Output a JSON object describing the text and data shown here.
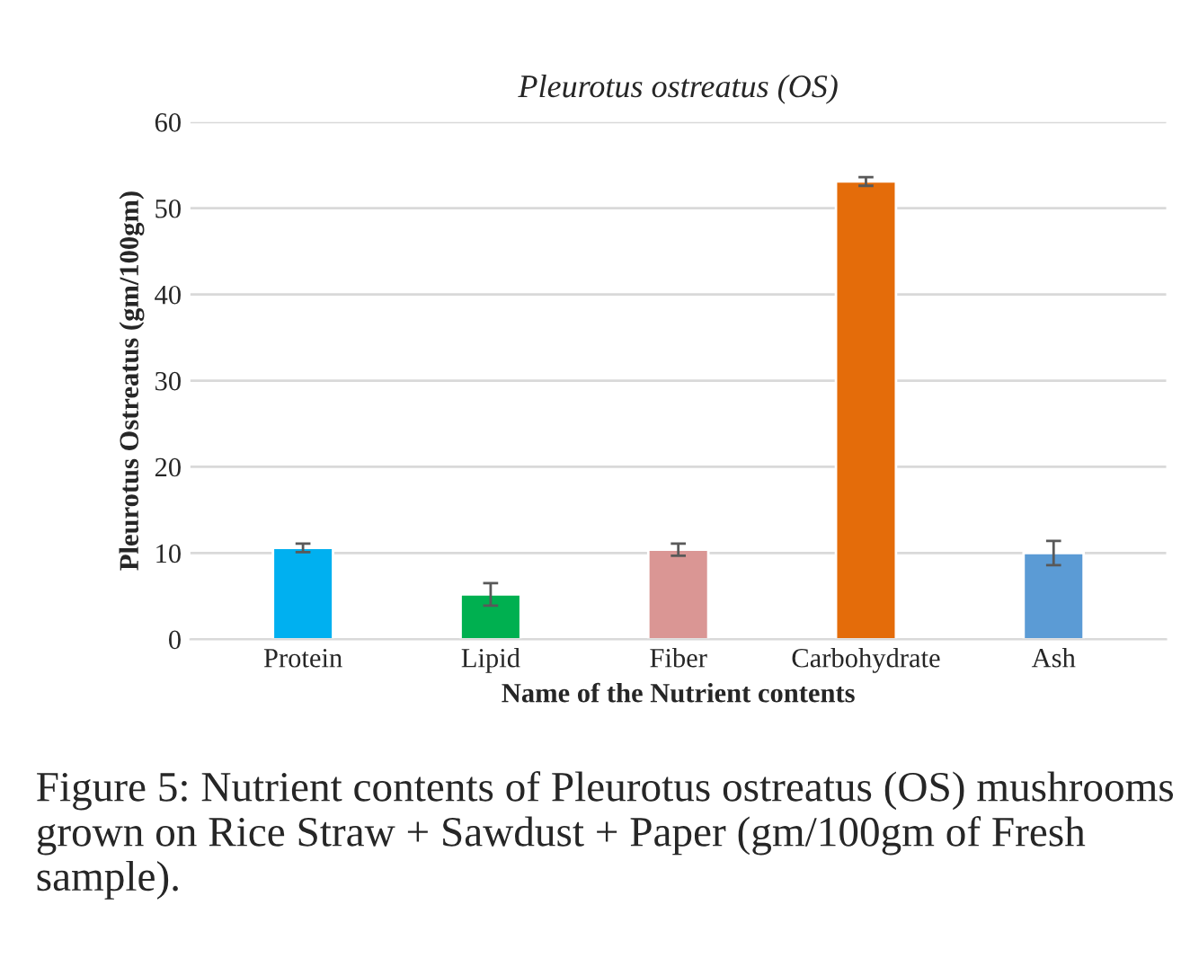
{
  "chart_data": {
    "type": "bar",
    "title": "Pleurotus ostreatus (OS)",
    "xlabel": "Name of the Nutrient contents",
    "ylabel": "Pleurotus Ostreatus (gm/100gm)",
    "categories": [
      "Protein",
      "Lipid",
      "Fiber",
      "Carbohydrate",
      "Ash"
    ],
    "values": [
      10.6,
      5.2,
      10.4,
      53.1,
      10.0
    ],
    "errors": [
      0.5,
      1.3,
      0.7,
      0.5,
      1.4
    ],
    "colors": [
      "#00b0f0",
      "#00b050",
      "#da9694",
      "#e46c0a",
      "#5b9bd5"
    ],
    "ylim": [
      0,
      60
    ],
    "yticks": [
      0,
      10,
      20,
      30,
      40,
      50,
      60
    ],
    "grid": "y",
    "annotations": [
      "Figure 5: Nutrient contents of Pleurotus ostreatus (OS) mushrooms grown on Rice Straw + Sawdust + Paper (gm/100gm of Fresh sample)."
    ]
  }
}
